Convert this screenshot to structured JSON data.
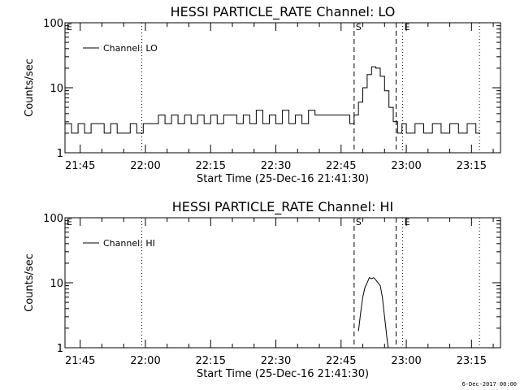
{
  "chart_data": [
    {
      "type": "line",
      "title": "HESSI PARTICLE_RATE Channel: LO",
      "xlabel": "Start Time (25-Dec-16 21:41:30)",
      "ylabel": "Counts/sec",
      "y_scale": "log",
      "ylim": [
        1,
        100
      ],
      "xlim": [
        "21:41:30",
        "23:21:40"
      ],
      "x_ticks": [
        "21:45",
        "22:00",
        "22:15",
        "22:30",
        "22:45",
        "23:00",
        "23:15"
      ],
      "y_ticks": [
        "1",
        "10",
        "100"
      ],
      "legend": {
        "entries": [
          "Channel: LO"
        ],
        "placement": "upper-left"
      },
      "markers": [
        {
          "label": "E",
          "time": "21:41:30",
          "style": "dotted"
        },
        {
          "label": "",
          "time": "21:59:10",
          "style": "dotted"
        },
        {
          "label": "S",
          "time": "22:48:00",
          "style": "dashed"
        },
        {
          "label": "",
          "time": "22:57:40",
          "style": "dashed"
        },
        {
          "label": "E",
          "time": "22:59:10",
          "style": "dotted"
        },
        {
          "label": "",
          "time": "23:16:50",
          "style": "dotted"
        }
      ],
      "series": [
        {
          "name": "Channel: LO",
          "x": [
            "21:41:30",
            "21:43:00",
            "21:44:30",
            "21:46:00",
            "21:47:30",
            "21:49:00",
            "21:50:30",
            "21:52:00",
            "21:53:30",
            "21:55:00",
            "21:56:30",
            "21:58:00",
            "21:59:30",
            "22:00:30",
            "22:01:30",
            "22:03:00",
            "22:04:30",
            "22:06:00",
            "22:07:30",
            "22:09:00",
            "22:10:30",
            "22:12:00",
            "22:13:30",
            "22:15:00",
            "22:16:30",
            "22:18:00",
            "22:19:30",
            "22:21:00",
            "22:22:30",
            "22:24:00",
            "22:25:30",
            "22:27:00",
            "22:28:30",
            "22:30:00",
            "22:31:30",
            "22:33:00",
            "22:34:30",
            "22:36:00",
            "22:37:30",
            "22:39:00",
            "22:40:30",
            "22:42:00",
            "22:43:30",
            "22:45:00",
            "22:46:00",
            "22:47:00",
            "22:48:00",
            "22:49:00",
            "22:50:00",
            "22:51:00",
            "22:52:00",
            "22:53:00",
            "22:54:00",
            "22:55:00",
            "22:56:00",
            "22:57:00",
            "22:58:00",
            "22:59:00",
            "23:00:00",
            "23:02:00",
            "23:04:00",
            "23:06:00",
            "23:08:00",
            "23:10:00",
            "23:12:00",
            "23:14:00",
            "23:16:00",
            "23:17:00"
          ],
          "y": [
            2.8,
            2.0,
            2.8,
            2.0,
            2.8,
            2.8,
            2.0,
            2.8,
            2.0,
            2.0,
            2.8,
            2.0,
            2.8,
            2.8,
            2.8,
            3.8,
            2.8,
            3.8,
            2.8,
            3.8,
            2.8,
            3.8,
            2.8,
            3.8,
            2.8,
            3.8,
            3.8,
            2.8,
            3.8,
            2.8,
            4.5,
            2.8,
            3.8,
            2.8,
            4.5,
            2.8,
            3.8,
            2.8,
            4.5,
            3.8,
            3.8,
            3.8,
            3.8,
            3.8,
            3.8,
            2.8,
            3.8,
            6.0,
            10.0,
            16.0,
            21.0,
            20.0,
            15.0,
            9.0,
            5.0,
            3.0,
            2.0,
            2.8,
            2.0,
            2.8,
            2.0,
            2.8,
            2.0,
            2.8,
            2.0,
            2.8,
            2.0,
            2.0
          ]
        }
      ]
    },
    {
      "type": "line",
      "title": "HESSI PARTICLE_RATE Channel: HI",
      "xlabel": "Start Time (25-Dec-16 21:41:30)",
      "ylabel": "Counts/sec",
      "y_scale": "log",
      "ylim": [
        1,
        100
      ],
      "xlim": [
        "21:41:30",
        "23:21:40"
      ],
      "x_ticks": [
        "21:45",
        "22:00",
        "22:15",
        "22:30",
        "22:45",
        "23:00",
        "23:15"
      ],
      "y_ticks": [
        "1",
        "10",
        "100"
      ],
      "legend": {
        "entries": [
          "Channel: HI"
        ],
        "placement": "upper-left"
      },
      "markers": [
        {
          "label": "E",
          "time": "21:41:30",
          "style": "dotted"
        },
        {
          "label": "",
          "time": "21:59:10",
          "style": "dotted"
        },
        {
          "label": "S",
          "time": "22:48:00",
          "style": "dashed"
        },
        {
          "label": "",
          "time": "22:57:40",
          "style": "dashed"
        },
        {
          "label": "E",
          "time": "22:59:10",
          "style": "dotted"
        },
        {
          "label": "",
          "time": "23:16:50",
          "style": "dotted"
        }
      ],
      "series": [
        {
          "name": "Channel: HI",
          "x": [
            "22:49:00",
            "22:49:30",
            "22:50:00",
            "22:50:30",
            "22:51:00",
            "22:51:30",
            "22:52:00",
            "22:52:30",
            "22:53:00",
            "22:53:30",
            "22:54:00",
            "22:54:30",
            "22:55:00",
            "22:55:30",
            "22:55:50"
          ],
          "y": [
            1.8,
            3.5,
            6.0,
            8.5,
            10.0,
            12.0,
            11.5,
            12.0,
            11.0,
            10.0,
            9.0,
            6.0,
            3.0,
            1.5,
            1.0
          ]
        }
      ]
    }
  ],
  "footer": "6-Dec-2017 00:00"
}
